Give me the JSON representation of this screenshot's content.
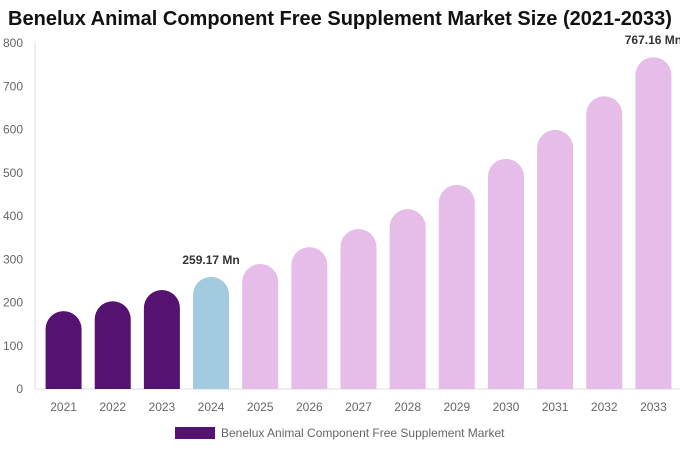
{
  "chart_data": {
    "type": "bar",
    "title": "Benelux Animal Component Free Supplement Market Size (2021-2033)",
    "categories": [
      "2021",
      "2022",
      "2023",
      "2024",
      "2025",
      "2026",
      "2027",
      "2028",
      "2029",
      "2030",
      "2031",
      "2032",
      "2033"
    ],
    "series": [
      {
        "name": "Benelux Animal Component Free Supplement Market",
        "values": [
          180,
          203,
          229,
          259.17,
          289,
          328,
          370,
          416,
          472,
          532,
          599,
          677,
          767.16
        ]
      }
    ],
    "data_labels": {
      "3": "259.17 Mn",
      "12": "767.16 Mn"
    },
    "ylim": [
      0,
      800
    ],
    "yticks": [
      0,
      100,
      200,
      300,
      400,
      500,
      600,
      700,
      800
    ],
    "grid": false,
    "legend_position": "bottom",
    "colors": {
      "historical": "#541370",
      "current": "#a3cbe0",
      "forecast": "#e6bde9"
    }
  }
}
